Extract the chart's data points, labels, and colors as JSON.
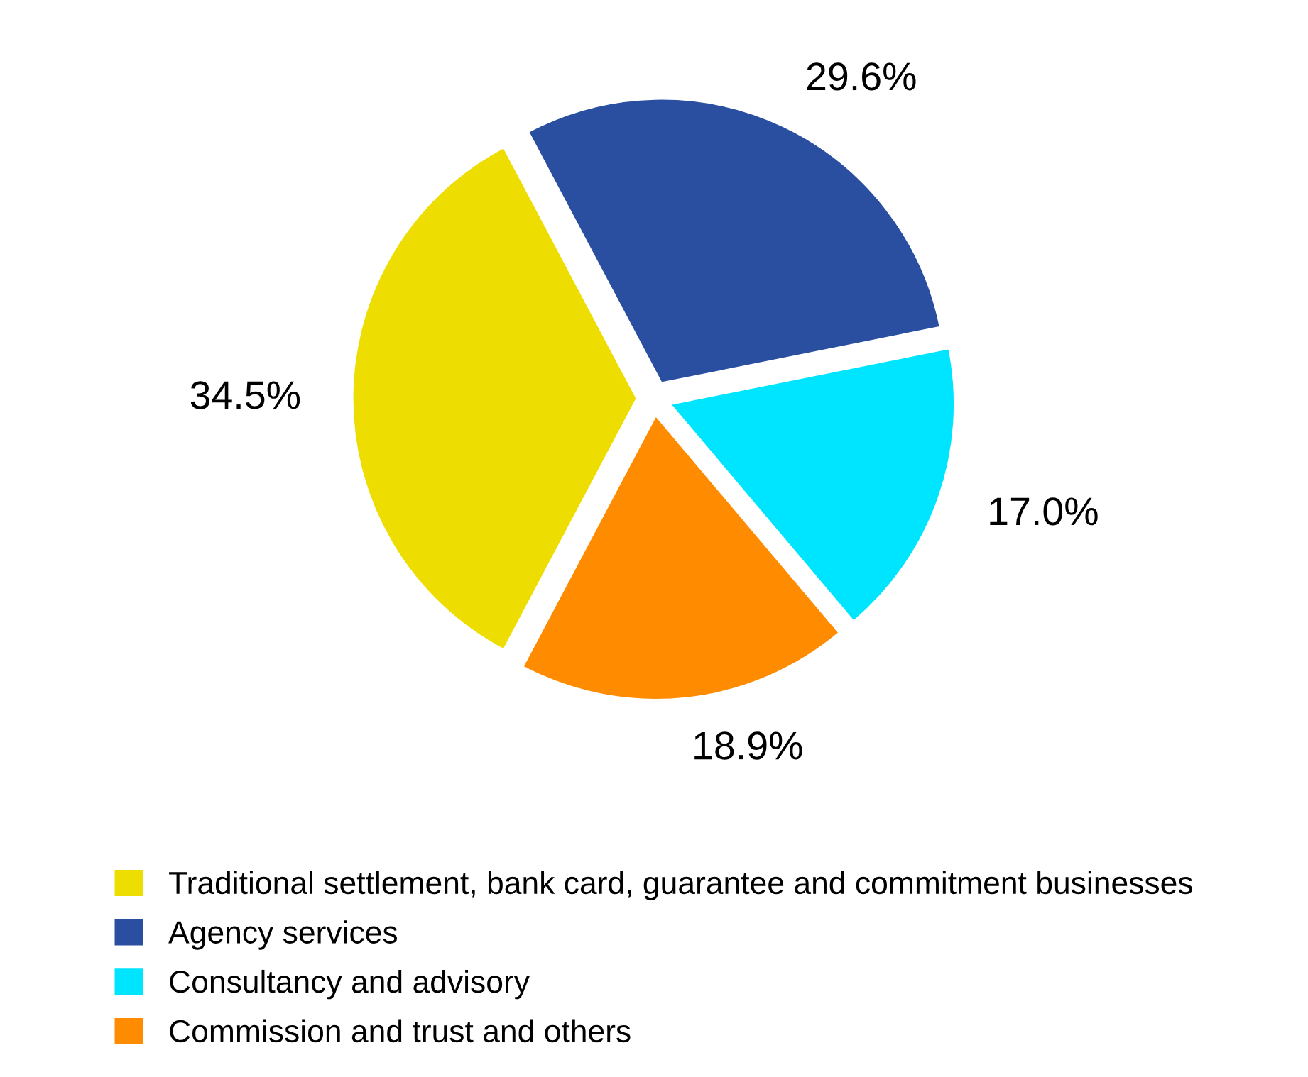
{
  "chart_data": {
    "type": "pie",
    "categories": [
      "Traditional settlement, bank card, guarantee and commitment businesses",
      "Agency services",
      "Consultancy and advisory",
      "Commission and trust and others"
    ],
    "values": [
      34.5,
      29.6,
      17.0,
      18.9
    ],
    "colors": [
      "#eedd00",
      "#2a4fa0",
      "#00e5ff",
      "#ff8c00"
    ],
    "value_labels": [
      "34.5%",
      "29.6%",
      "17.0%",
      "18.9%"
    ],
    "legend": "bottom"
  }
}
